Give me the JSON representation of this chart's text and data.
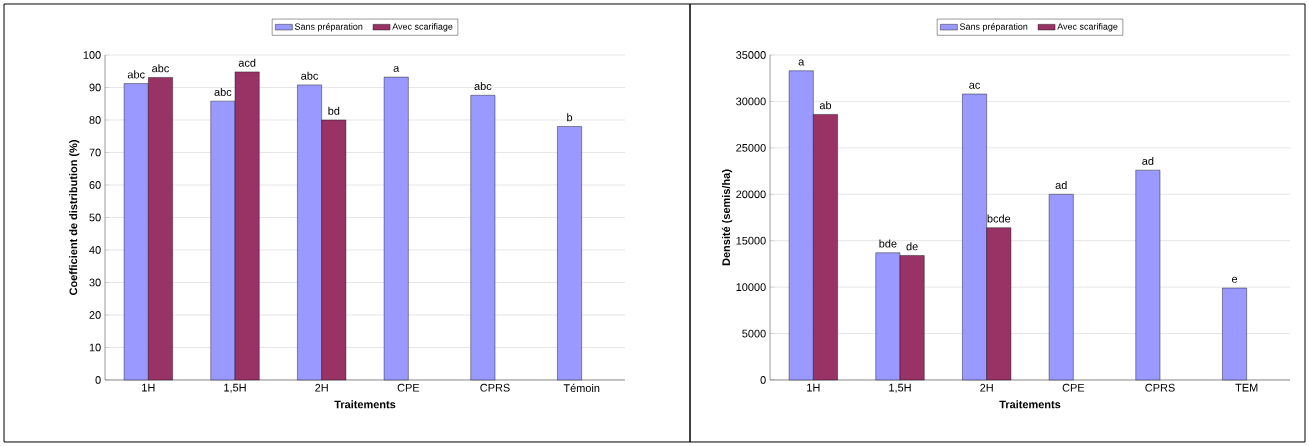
{
  "chart_data": [
    {
      "type": "bar",
      "xlabel": "Traitements",
      "ylabel": "Coefficient de distribution (%)",
      "categories": [
        "1H",
        "1,5H",
        "2H",
        "CPE",
        "CPRS",
        "Témoin"
      ],
      "ylim": [
        0,
        100
      ],
      "yticks": [
        0,
        10,
        20,
        30,
        40,
        50,
        60,
        70,
        80,
        90,
        100
      ],
      "grid": "y",
      "legend": "top",
      "series": [
        {
          "name": "Sans préparation",
          "color": "#9999ff",
          "values": [
            91.2,
            85.8,
            90.8,
            93.2,
            87.6,
            78.0
          ],
          "value_labels": [
            "abc",
            "abc",
            "abc",
            "a",
            "abc",
            "b"
          ]
        },
        {
          "name": "Avec scarifiage",
          "color": "#993366",
          "values": [
            93.1,
            94.8,
            80.0,
            null,
            null,
            null
          ],
          "value_labels": [
            "abc",
            "acd",
            "bd",
            null,
            null,
            null
          ]
        }
      ]
    },
    {
      "type": "bar",
      "xlabel": "Traitements",
      "ylabel": "Densité (semis/ha)",
      "categories": [
        "1H",
        "1,5H",
        "2H",
        "CPE",
        "CPRS",
        "TEM"
      ],
      "ylim": [
        0,
        35000
      ],
      "yticks": [
        0,
        5000,
        10000,
        15000,
        20000,
        25000,
        30000,
        35000
      ],
      "grid": "y",
      "legend": "top",
      "series": [
        {
          "name": "Sans préparation",
          "color": "#9999ff",
          "values": [
            33300,
            13700,
            30800,
            20000,
            22600,
            9900
          ],
          "value_labels": [
            "a",
            "bde",
            "ac",
            "ad",
            "ad",
            "e"
          ]
        },
        {
          "name": "Avec scarifiage",
          "color": "#993366",
          "values": [
            28600,
            13400,
            16400,
            null,
            null,
            null
          ],
          "value_labels": [
            "ab",
            "de",
            "bcde",
            null,
            null,
            null
          ]
        }
      ]
    }
  ]
}
